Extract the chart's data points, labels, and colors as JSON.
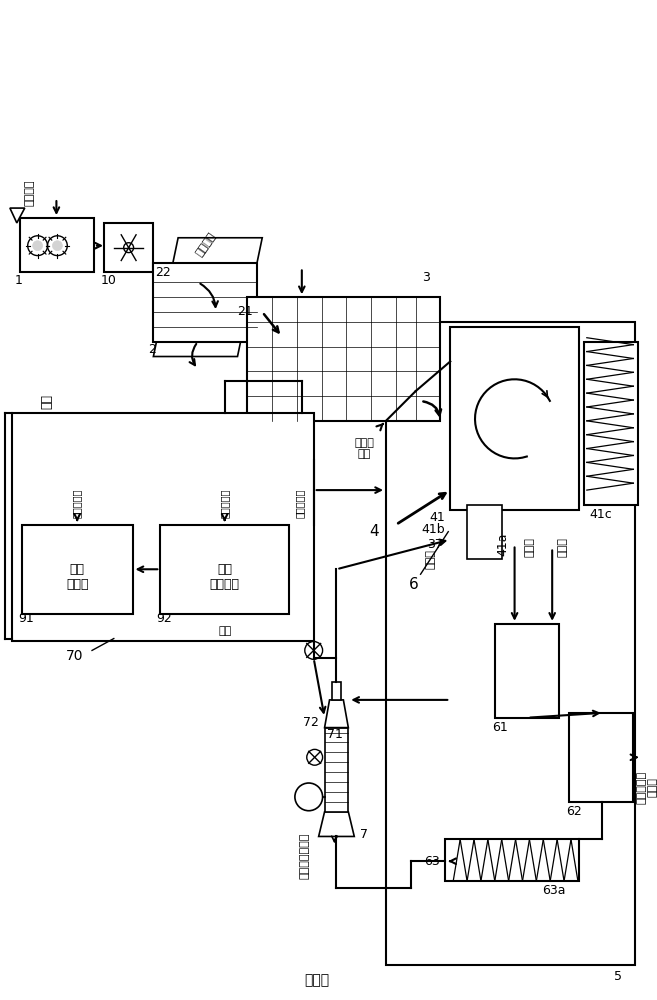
{
  "bg_color": "#ffffff",
  "line_color": "#000000",
  "fig_width": 6.57,
  "fig_height": 10.0,
  "labels": {
    "top_right": "投入至塑料\n燃烧炉",
    "top_filter": "63a",
    "pipe_63": "63",
    "box_62": "62",
    "box_61": "61",
    "label_6": "6",
    "vibration": "振动筛",
    "label_4": "4",
    "large_particle": "大粒物",
    "small_particle": "小粒物",
    "label_41a": "41a",
    "label_41b": "41b",
    "label_41c": "41c",
    "label_41": "41",
    "label_37": "37",
    "label_7": "7",
    "fuel_label": "燃料（小粒物）",
    "label_72": "72",
    "label_71": "71",
    "label_70": "70",
    "drain_top": "排水",
    "drain_mid": "排水",
    "gen_steam": "发电用蒸气",
    "heat_steam": "加热用蒸气",
    "heat_steam2": "加热用蒸气",
    "box_91_line1": "蒸气",
    "box_91_line2": "发电机",
    "label_91": "91",
    "box_92_line1": "蒸气",
    "box_92_line2": "控制装置",
    "label_92": "92",
    "dry_exhaust": "干燥物\n排出",
    "label_3": "3",
    "garbage_input": "垃圾投入",
    "label_22": "22",
    "label_21": "21",
    "label_2": "2",
    "label_1": "1",
    "label_10": "10",
    "from_pit": "来自凹坑",
    "bottom_label": "中装物",
    "label_5": "5"
  }
}
